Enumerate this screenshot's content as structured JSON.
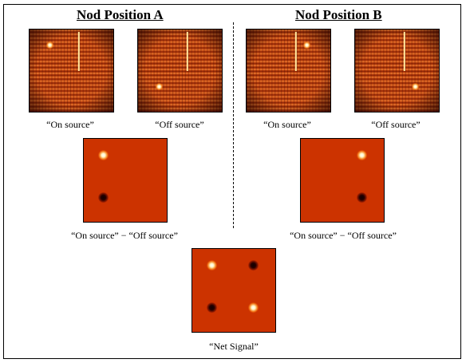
{
  "headings": {
    "a": "Nod Position A",
    "b": "Nod Position B"
  },
  "captions": {
    "a_on": "“On source”",
    "a_off": "“Off source”",
    "b_on": "“On source”",
    "b_off": "“Off source”",
    "a_diff": "“On source” − “Off source”",
    "b_diff": "“On source” − “Off source”",
    "net": "“Net Signal”"
  },
  "colors": {
    "raw_base": "#b33a0c",
    "diff_base": "#cc3300",
    "bright_spot": "#fff3c0",
    "dark_spot": "#250000",
    "divider": "#000000"
  }
}
